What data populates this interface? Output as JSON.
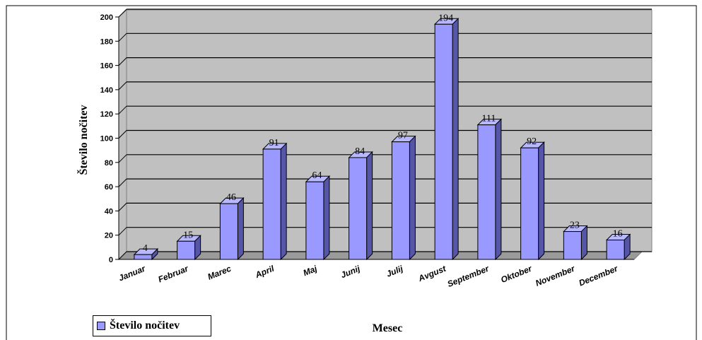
{
  "chart_data": {
    "type": "bar",
    "style": "3d-column",
    "categories": [
      "Januar",
      "Februar",
      "Marec",
      "April",
      "Maj",
      "Junij",
      "Julij",
      "Avgust",
      "September",
      "Oktober",
      "November",
      "December"
    ],
    "series": [
      {
        "name": "Število nočitev",
        "values": [
          4,
          15,
          46,
          91,
          64,
          84,
          97,
          194,
          111,
          92,
          23,
          16
        ]
      }
    ],
    "data_labels": [
      "4",
      "15",
      "46",
      "91",
      "64",
      "84",
      "97",
      "194",
      "111",
      "92",
      "23",
      "16"
    ],
    "title": "",
    "xlabel": "Mesec",
    "ylabel": "Število nočitev",
    "ylim": [
      0,
      200
    ],
    "yticks": [
      0,
      20,
      40,
      60,
      80,
      100,
      120,
      140,
      160,
      180,
      200
    ],
    "ytick_labels": [
      "0",
      "20",
      "40",
      "60",
      "80",
      "100",
      "120",
      "140",
      "160",
      "180",
      "200"
    ],
    "grid": true,
    "legend_position": "bottom-left"
  },
  "colors": {
    "bar_front": "#9999ff",
    "bar_side": "#5656a8",
    "bar_top": "#b8b8ff",
    "plot_background": "#c0c0c0",
    "gridline": "#000000",
    "text": "#000000",
    "page_background": "#ffffff"
  }
}
